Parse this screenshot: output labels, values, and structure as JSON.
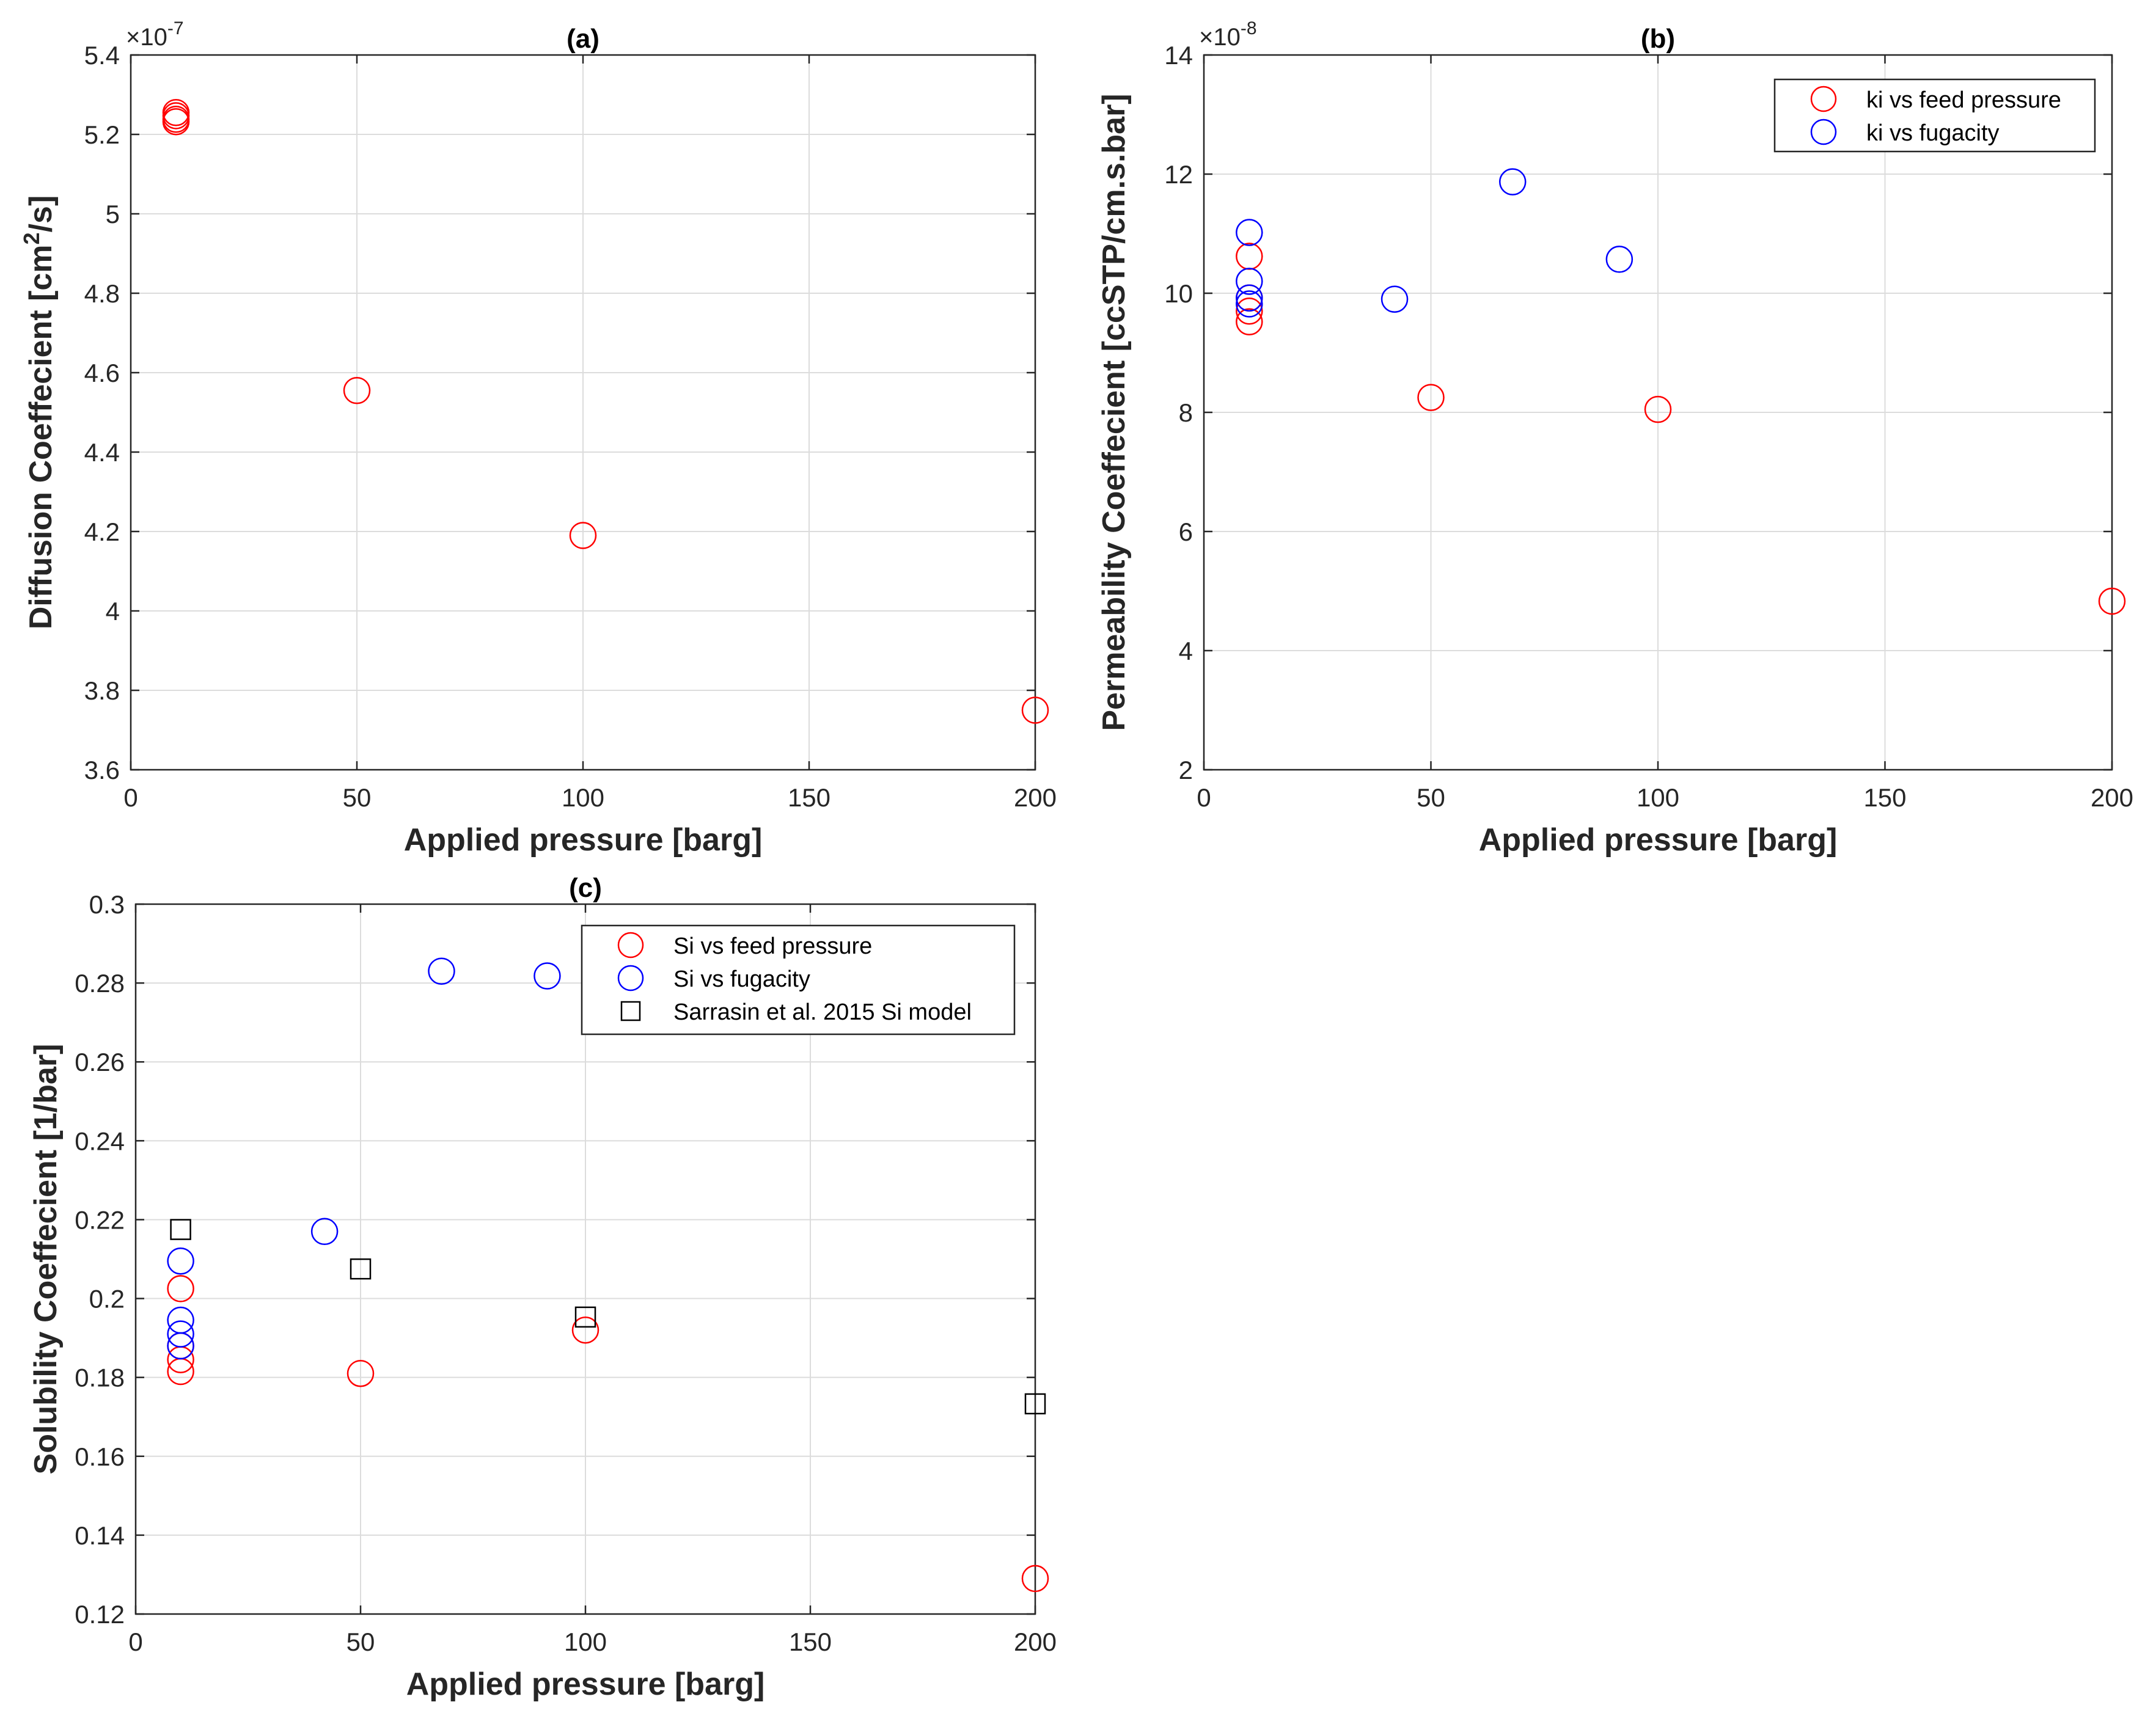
{
  "chart_data": [
    {
      "panel": "a",
      "type": "scatter",
      "title": "(a)",
      "xlabel": "Applied pressure [barg]",
      "ylabel_main": "Diffusion Coeffecient [cm",
      "ylabel_sup": "2",
      "ylabel_tail": "/s]",
      "xlim": [
        0,
        200
      ],
      "ylim": [
        3.6,
        5.4
      ],
      "xticks": [
        0,
        50,
        100,
        150,
        200
      ],
      "yticks": [
        3.6,
        3.8,
        4,
        4.2,
        4.4,
        4.6,
        4.8,
        5,
        5.2,
        5.4
      ],
      "xtick_labels": [
        "0",
        "50",
        "100",
        "150",
        "200"
      ],
      "ytick_labels": [
        "3.6",
        "3.8",
        "4",
        "4.2",
        "4.4",
        "4.6",
        "4.8",
        "5",
        "5.2",
        "5.4"
      ],
      "exponent_base": "×10",
      "exponent_power": "-7",
      "grid": true,
      "legend": null,
      "series": [
        {
          "color": "#ff0000",
          "marker": "circle",
          "points": [
            [
              10,
              5.255
            ],
            [
              10,
              5.247
            ],
            [
              10,
              5.238
            ],
            [
              10,
              5.232
            ],
            [
              50,
              4.555
            ],
            [
              100,
              4.19
            ],
            [
              200,
              3.75
            ]
          ]
        }
      ]
    },
    {
      "panel": "b",
      "type": "scatter",
      "title": "(b)",
      "xlabel": "Applied pressure [barg]",
      "ylabel_main": "Permeability Coeffecient [ccSTP/cm.s.bar]",
      "ylabel_sup": "",
      "ylabel_tail": "",
      "xlim": [
        0,
        200
      ],
      "ylim": [
        2,
        14
      ],
      "xticks": [
        0,
        50,
        100,
        150,
        200
      ],
      "yticks": [
        2,
        4,
        6,
        8,
        10,
        12,
        14
      ],
      "xtick_labels": [
        "0",
        "50",
        "100",
        "150",
        "200"
      ],
      "ytick_labels": [
        "2",
        "4",
        "6",
        "8",
        "10",
        "12",
        "14"
      ],
      "exponent_base": "×10",
      "exponent_power": "-8",
      "grid": true,
      "legend": "top-right",
      "series": [
        {
          "name": "ki vs feed pressure",
          "color": "#ff0000",
          "marker": "circle",
          "points": [
            [
              10,
              10.62
            ],
            [
              10,
              9.92
            ],
            [
              10,
              9.7
            ],
            [
              10,
              9.52
            ],
            [
              50,
              8.25
            ],
            [
              100,
              8.05
            ],
            [
              200,
              4.83
            ]
          ]
        },
        {
          "name": "ki vs fugacity",
          "color": "#0000ff",
          "marker": "circle",
          "points": [
            [
              10,
              11.02
            ],
            [
              10,
              10.2
            ],
            [
              10,
              9.92
            ],
            [
              10,
              9.82
            ],
            [
              42,
              9.9
            ],
            [
              68,
              11.87
            ],
            [
              91.5,
              10.57
            ]
          ]
        }
      ]
    },
    {
      "panel": "c",
      "type": "scatter",
      "title": "(c)",
      "xlabel": "Applied pressure [barg]",
      "ylabel_main": "Solubility Coeffecient [1/bar]",
      "ylabel_sup": "",
      "ylabel_tail": "",
      "xlim": [
        0,
        200
      ],
      "ylim": [
        0.12,
        0.3
      ],
      "xticks": [
        0,
        50,
        100,
        150,
        200
      ],
      "yticks": [
        0.12,
        0.14,
        0.16,
        0.18,
        0.2,
        0.22,
        0.24,
        0.26,
        0.28,
        0.3
      ],
      "xtick_labels": [
        "0",
        "50",
        "100",
        "150",
        "200"
      ],
      "ytick_labels": [
        "0.12",
        "0.14",
        "0.16",
        "0.18",
        "0.2",
        "0.22",
        "0.24",
        "0.26",
        "0.28",
        "0.3"
      ],
      "exponent_base": "",
      "exponent_power": "",
      "grid": true,
      "legend": "top-right",
      "series": [
        {
          "name": "Si vs feed pressure",
          "color": "#ff0000",
          "marker": "circle",
          "points": [
            [
              10,
              0.2025
            ],
            [
              10,
              0.188
            ],
            [
              10,
              0.1845
            ],
            [
              10,
              0.1815
            ],
            [
              50,
              0.181
            ],
            [
              100,
              0.192
            ],
            [
              200,
              0.129
            ]
          ]
        },
        {
          "name": "Si vs fugacity",
          "color": "#0000ff",
          "marker": "circle",
          "points": [
            [
              10,
              0.2095
            ],
            [
              10,
              0.1945
            ],
            [
              10,
              0.191
            ],
            [
              10,
              0.188
            ],
            [
              42,
              0.217
            ],
            [
              68,
              0.283
            ],
            [
              91.5,
              0.2818
            ]
          ]
        },
        {
          "name": "Sarrasin et al. 2015 Si model",
          "color": "#000000",
          "marker": "square",
          "points": [
            [
              10,
              0.2175
            ],
            [
              50,
              0.2075
            ],
            [
              100,
              0.1953
            ],
            [
              200,
              0.1733
            ]
          ]
        }
      ]
    }
  ]
}
